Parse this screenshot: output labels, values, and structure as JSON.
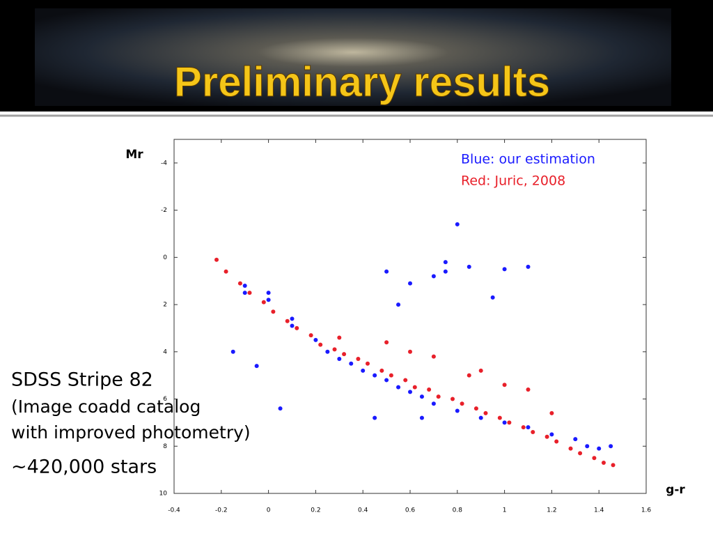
{
  "slide": {
    "title": "Preliminary results",
    "notes": [
      "SDSS Stripe 82",
      "(Image coadd catalog",
      "with improved photometry)",
      "~420,000 stars"
    ]
  },
  "chart_data": {
    "type": "scatter",
    "x_label": "g-r",
    "y_label": "Mr",
    "xlim": [
      -0.4,
      1.6
    ],
    "xticks": [
      -0.4,
      -0.2,
      0,
      0.2,
      0.4,
      0.6,
      0.8,
      1,
      1.2,
      1.4,
      1.6
    ],
    "ylim": [
      -5,
      10
    ],
    "y_inverted": true,
    "yticks": [
      -4,
      -2,
      0,
      2,
      4,
      6,
      8,
      10
    ],
    "legend": "top-right",
    "series": [
      {
        "name": "Red: Juric, 2008",
        "color": "#e8202a",
        "x": [
          -0.22,
          -0.18,
          -0.12,
          -0.08,
          -0.02,
          0.02,
          0.08,
          0.12,
          0.18,
          0.22,
          0.28,
          0.32,
          0.38,
          0.42,
          0.48,
          0.52,
          0.58,
          0.62,
          0.68,
          0.72,
          0.78,
          0.82,
          0.88,
          0.92,
          0.98,
          1.02,
          1.08,
          1.12,
          1.18,
          1.22,
          1.28,
          1.32,
          1.38,
          1.42,
          1.46,
          0.5,
          0.7,
          0.9,
          1.1,
          0.3,
          0.6,
          0.85,
          1.0,
          1.2
        ],
        "y": [
          0.1,
          0.6,
          1.1,
          1.5,
          1.9,
          2.3,
          2.7,
          3.0,
          3.3,
          3.7,
          3.9,
          4.1,
          4.3,
          4.5,
          4.8,
          5.0,
          5.2,
          5.5,
          5.6,
          5.9,
          6.0,
          6.2,
          6.4,
          6.6,
          6.8,
          7.0,
          7.2,
          7.4,
          7.6,
          7.8,
          8.1,
          8.3,
          8.5,
          8.7,
          8.8,
          3.6,
          4.2,
          4.8,
          5.6,
          3.4,
          4.0,
          5.0,
          5.4,
          6.6
        ]
      },
      {
        "name": "Blue: our estimation",
        "color": "#1a1aff",
        "x": [
          -0.1,
          0.0,
          0.1,
          0.2,
          0.25,
          0.3,
          0.35,
          0.4,
          0.45,
          0.5,
          0.55,
          0.6,
          0.65,
          0.7,
          0.8,
          0.9,
          1.0,
          1.1,
          1.2,
          1.3,
          1.35,
          1.4,
          1.45,
          -0.1,
          0.0,
          0.5,
          0.6,
          0.75,
          0.8,
          0.85,
          0.95,
          1.0,
          1.1,
          0.55,
          0.7,
          0.75,
          0.1,
          -0.15,
          -0.05,
          0.05,
          0.45,
          0.65
        ],
        "y": [
          1.2,
          1.8,
          2.6,
          3.5,
          4.0,
          4.3,
          4.5,
          4.8,
          5.0,
          5.2,
          5.5,
          5.7,
          5.9,
          6.2,
          6.5,
          6.8,
          7.0,
          7.2,
          7.5,
          7.7,
          8.0,
          8.1,
          8.0,
          1.5,
          1.5,
          0.6,
          1.1,
          0.2,
          -1.4,
          0.4,
          1.7,
          0.5,
          0.4,
          2.0,
          0.8,
          0.6,
          2.9,
          4.0,
          4.6,
          6.4,
          6.8,
          6.8
        ]
      }
    ]
  }
}
